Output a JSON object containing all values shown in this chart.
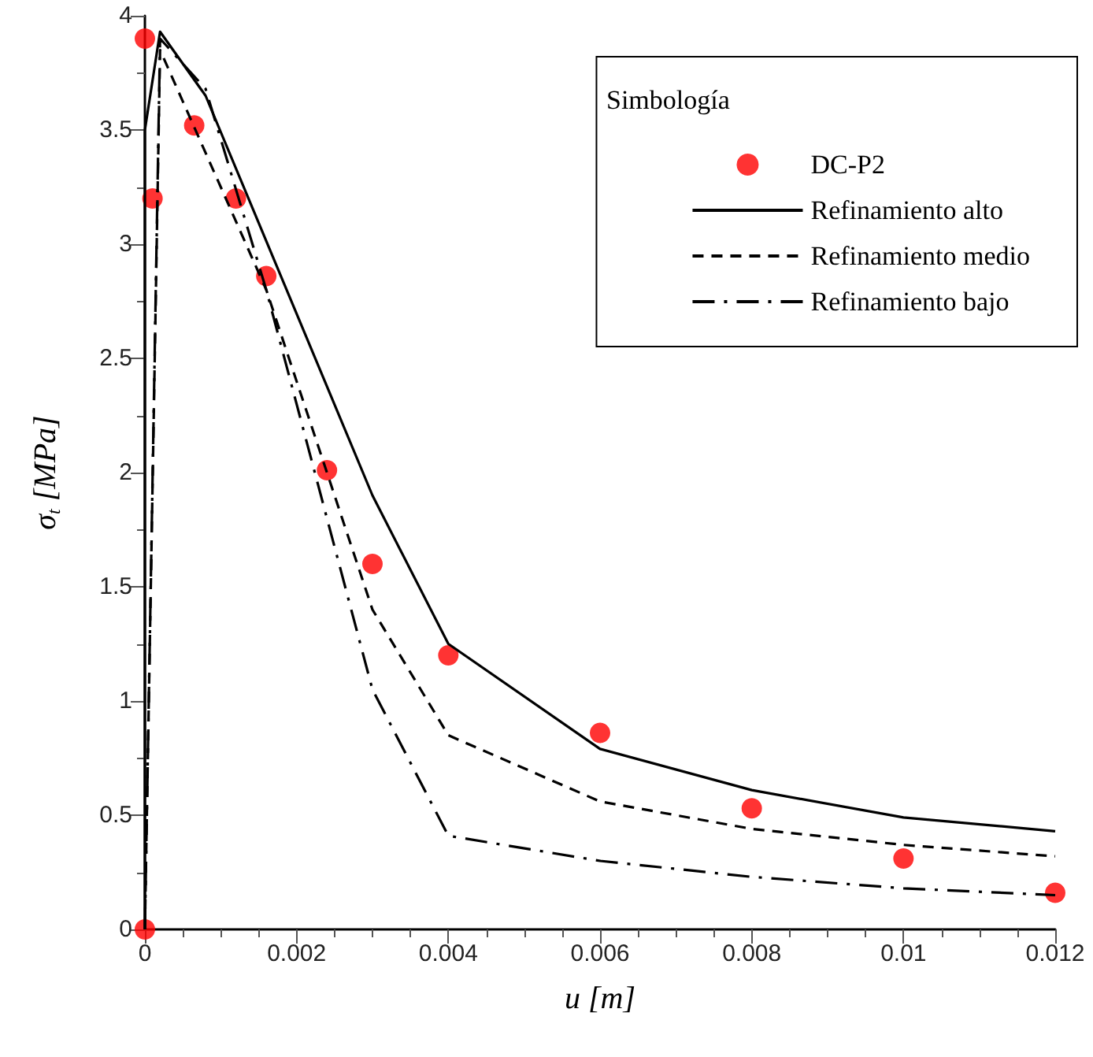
{
  "chart_data": {
    "type": "line",
    "xlabel": "u [m]",
    "ylabel": "σ$_{t}$ [MPa]",
    "legend_title": "Simbología",
    "xlim": [
      0,
      0.012
    ],
    "xticks": [
      0,
      0.002,
      0.004,
      0.006,
      0.008,
      0.01,
      0.012
    ],
    "ylim": [
      0,
      4
    ],
    "yticks": [
      0,
      0.5,
      1,
      1.5,
      2,
      2.5,
      3,
      3.5,
      4
    ],
    "grid": false,
    "legend": "top right",
    "series": [
      {
        "name": "DC-P2",
        "type": "scatter",
        "marker": "circle",
        "color": "#ff0000",
        "x": [
          0,
          0,
          0.0001,
          0.00065,
          0.0012,
          0.0016,
          0.0024,
          0.003,
          0.004,
          0.006,
          0.008,
          0.01,
          0.012
        ],
        "values": [
          0,
          3.9,
          3.2,
          3.52,
          3.2,
          2.86,
          2.01,
          1.6,
          1.2,
          0.86,
          0.53,
          0.31,
          0.16
        ]
      },
      {
        "name": "Refinamiento alto",
        "line_style": "solid",
        "color": "#000000",
        "x": [
          0,
          0,
          0.0002,
          0.0008,
          0.003,
          0.004,
          0.006,
          0.008,
          0.01,
          0.012
        ],
        "values": [
          0,
          3.5,
          3.93,
          3.65,
          1.9,
          1.25,
          0.79,
          0.61,
          0.49,
          0.43
        ]
      },
      {
        "name": "Refinamiento medio",
        "line_style": "dashed",
        "color": "#000000",
        "x": [
          0,
          0.0002,
          0.0016,
          0.003,
          0.004,
          0.006,
          0.008,
          0.01,
          0.012
        ],
        "values": [
          0,
          3.85,
          2.8,
          1.4,
          0.85,
          0.56,
          0.44,
          0.37,
          0.32
        ]
      },
      {
        "name": "Refinamiento bajo",
        "line_style": "dashdot",
        "color": "#000000",
        "x": [
          0,
          0.0002,
          0.0008,
          0.0016,
          0.003,
          0.004,
          0.006,
          0.008,
          0.01,
          0.012
        ],
        "values": [
          0,
          3.9,
          3.68,
          2.8,
          1.05,
          0.41,
          0.3,
          0.23,
          0.18,
          0.15
        ]
      }
    ]
  }
}
